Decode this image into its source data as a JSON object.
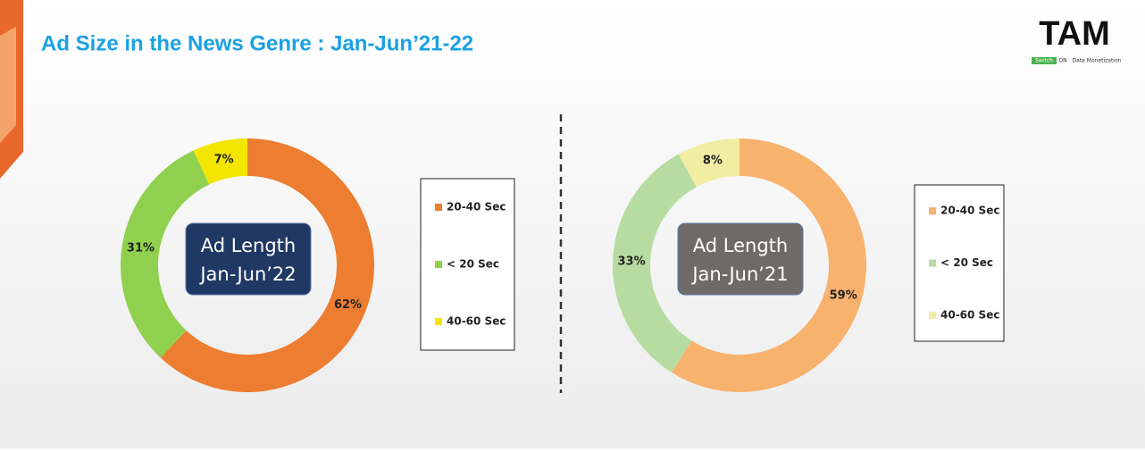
{
  "title": "Ad Size in the News Genre : Jan-Jun’21-22",
  "logo": {
    "name": "TAM",
    "tagline_switch": "Switch",
    "tagline_on": "ON",
    "tagline_rest": "Data Monetization"
  },
  "chart_data": [
    {
      "type": "donut",
      "center_label": [
        "Ad Length",
        "Jan-Jun’22"
      ],
      "center_color": "#1f3864",
      "categories": [
        "20-40 Sec",
        "< 20 Sec",
        "40-60 Sec"
      ],
      "values": [
        62,
        31,
        7
      ],
      "value_labels": [
        "62%",
        "31%",
        "7%"
      ],
      "colors": [
        "#ed7d31",
        "#8fd14f",
        "#f2e600"
      ]
    },
    {
      "type": "donut",
      "center_label": [
        "Ad Length",
        "Jan-Jun’21"
      ],
      "center_color": "#706a66",
      "categories": [
        "20-40 Sec",
        "< 20 Sec",
        "40-60 Sec"
      ],
      "values": [
        59,
        33,
        8
      ],
      "value_labels": [
        "59%",
        "33%",
        "8%"
      ],
      "colors": [
        "#f7b26e",
        "#b6dca2",
        "#f1eea3"
      ]
    }
  ]
}
